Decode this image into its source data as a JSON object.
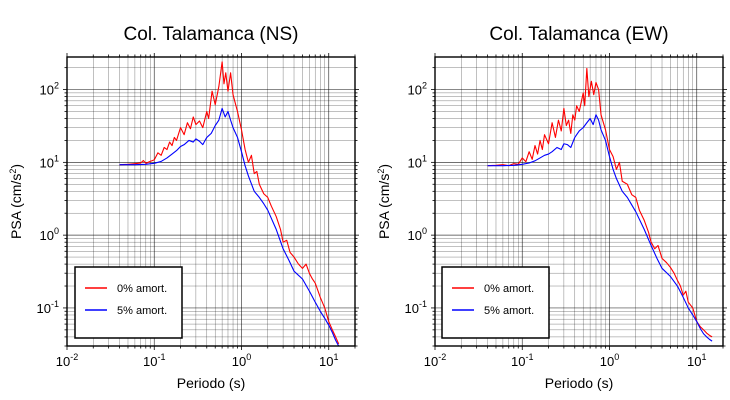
{
  "chart_data": [
    {
      "type": "line",
      "title": "Col. Talamanca (NS)",
      "xlabel": "Periodo (s)",
      "ylabel": "PSA (cm/s²)",
      "xscale": "log",
      "yscale": "log",
      "xlim": [
        0.01,
        20
      ],
      "ylim": [
        0.03,
        280
      ],
      "x_ticks": [
        {
          "base": "10",
          "exp": "-2"
        },
        {
          "base": "10",
          "exp": "-1"
        },
        {
          "base": "10",
          "exp": "0"
        },
        {
          "base": "10",
          "exp": "1"
        }
      ],
      "y_ticks": [
        {
          "base": "10",
          "exp": "-1"
        },
        {
          "base": "10",
          "exp": "0"
        },
        {
          "base": "10",
          "exp": "1"
        },
        {
          "base": "10",
          "exp": "2"
        }
      ],
      "grid": true,
      "legend_position": "bottom-left",
      "series": [
        {
          "name": "0% amort.",
          "color": "#ff0000",
          "points": [
            [
              0.04,
              9.3
            ],
            [
              0.05,
              9.4
            ],
            [
              0.06,
              9.6
            ],
            [
              0.07,
              9.8
            ],
            [
              0.075,
              10.6
            ],
            [
              0.08,
              9.7
            ],
            [
              0.09,
              10.3
            ],
            [
              0.1,
              10.8
            ],
            [
              0.11,
              13.5
            ],
            [
              0.12,
              12.5
            ],
            [
              0.13,
              16
            ],
            [
              0.14,
              15
            ],
            [
              0.15,
              19
            ],
            [
              0.16,
              17
            ],
            [
              0.17,
              22
            ],
            [
              0.18,
              20
            ],
            [
              0.2,
              30
            ],
            [
              0.22,
              24
            ],
            [
              0.24,
              35
            ],
            [
              0.26,
              29
            ],
            [
              0.28,
              42
            ],
            [
              0.3,
              33
            ],
            [
              0.33,
              37
            ],
            [
              0.36,
              30
            ],
            [
              0.4,
              50
            ],
            [
              0.42,
              40
            ],
            [
              0.46,
              95
            ],
            [
              0.5,
              62
            ],
            [
              0.55,
              110
            ],
            [
              0.6,
              240
            ],
            [
              0.63,
              120
            ],
            [
              0.66,
              170
            ],
            [
              0.7,
              95
            ],
            [
              0.75,
              170
            ],
            [
              0.8,
              85
            ],
            [
              0.9,
              50
            ],
            [
              1.0,
              28
            ],
            [
              1.1,
              15
            ],
            [
              1.2,
              10
            ],
            [
              1.3,
              12.5
            ],
            [
              1.4,
              7
            ],
            [
              1.5,
              7.5
            ],
            [
              1.6,
              5
            ],
            [
              1.8,
              3.7
            ],
            [
              2.0,
              3.3
            ],
            [
              2.2,
              2.5
            ],
            [
              2.5,
              1.8
            ],
            [
              2.8,
              1.2
            ],
            [
              3.0,
              0.8
            ],
            [
              3.3,
              0.85
            ],
            [
              3.6,
              0.58
            ],
            [
              4.0,
              0.5
            ],
            [
              4.5,
              0.4
            ],
            [
              5.0,
              0.35
            ],
            [
              5.5,
              0.4
            ],
            [
              6.0,
              0.3
            ],
            [
              6.5,
              0.25
            ],
            [
              7.0,
              0.22
            ],
            [
              8.0,
              0.14
            ],
            [
              9.0,
              0.1
            ],
            [
              10.0,
              0.065
            ],
            [
              11.0,
              0.05
            ],
            [
              12.0,
              0.04
            ],
            [
              13.0,
              0.032
            ]
          ]
        },
        {
          "name": "5% amort.",
          "color": "#0000ff",
          "points": [
            [
              0.04,
              9.3
            ],
            [
              0.06,
              9.3
            ],
            [
              0.08,
              9.4
            ],
            [
              0.1,
              9.7
            ],
            [
              0.12,
              10.3
            ],
            [
              0.14,
              11.5
            ],
            [
              0.16,
              13
            ],
            [
              0.18,
              14.5
            ],
            [
              0.2,
              16.5
            ],
            [
              0.22,
              17.5
            ],
            [
              0.25,
              20
            ],
            [
              0.28,
              19
            ],
            [
              0.3,
              21
            ],
            [
              0.33,
              19.5
            ],
            [
              0.36,
              17.5
            ],
            [
              0.4,
              22
            ],
            [
              0.45,
              25
            ],
            [
              0.5,
              32
            ],
            [
              0.55,
              38
            ],
            [
              0.6,
              55
            ],
            [
              0.65,
              42
            ],
            [
              0.7,
              50
            ],
            [
              0.75,
              38
            ],
            [
              0.8,
              30
            ],
            [
              0.9,
              22
            ],
            [
              1.0,
              14
            ],
            [
              1.1,
              9
            ],
            [
              1.2,
              6.5
            ],
            [
              1.4,
              4
            ],
            [
              1.6,
              3.3
            ],
            [
              1.8,
              2.7
            ],
            [
              2.0,
              2.2
            ],
            [
              2.5,
              1.2
            ],
            [
              3.0,
              0.65
            ],
            [
              3.5,
              0.45
            ],
            [
              4.0,
              0.32
            ],
            [
              5.0,
              0.25
            ],
            [
              6.0,
              0.17
            ],
            [
              7.0,
              0.12
            ],
            [
              8.0,
              0.09
            ],
            [
              9.0,
              0.072
            ],
            [
              10.0,
              0.058
            ],
            [
              11.0,
              0.046
            ],
            [
              12.0,
              0.036
            ],
            [
              13.0,
              0.03
            ]
          ]
        }
      ]
    },
    {
      "type": "line",
      "title": "Col. Talamanca (EW)",
      "xlabel": "Periodo (s)",
      "ylabel": "PSA (cm/s²)",
      "xscale": "log",
      "yscale": "log",
      "xlim": [
        0.01,
        20
      ],
      "ylim": [
        0.03,
        280
      ],
      "x_ticks": [
        {
          "base": "10",
          "exp": "-2"
        },
        {
          "base": "10",
          "exp": "-1"
        },
        {
          "base": "10",
          "exp": "0"
        },
        {
          "base": "10",
          "exp": "1"
        }
      ],
      "y_ticks": [
        {
          "base": "10",
          "exp": "-1"
        },
        {
          "base": "10",
          "exp": "0"
        },
        {
          "base": "10",
          "exp": "1"
        },
        {
          "base": "10",
          "exp": "2"
        }
      ],
      "grid": true,
      "legend_position": "bottom-left",
      "series": [
        {
          "name": "0% amort.",
          "color": "#ff0000",
          "points": [
            [
              0.04,
              9.0
            ],
            [
              0.05,
              9.1
            ],
            [
              0.06,
              9.3
            ],
            [
              0.07,
              9.0
            ],
            [
              0.08,
              9.6
            ],
            [
              0.09,
              9.4
            ],
            [
              0.1,
              11.5
            ],
            [
              0.11,
              10.2
            ],
            [
              0.12,
              14
            ],
            [
              0.13,
              11
            ],
            [
              0.14,
              17
            ],
            [
              0.15,
              13
            ],
            [
              0.16,
              20
            ],
            [
              0.17,
              15
            ],
            [
              0.18,
              24
            ],
            [
              0.2,
              18
            ],
            [
              0.22,
              35
            ],
            [
              0.24,
              22
            ],
            [
              0.26,
              38
            ],
            [
              0.28,
              27
            ],
            [
              0.3,
              55
            ],
            [
              0.32,
              32
            ],
            [
              0.34,
              38
            ],
            [
              0.36,
              25
            ],
            [
              0.38,
              45
            ],
            [
              0.4,
              38
            ],
            [
              0.42,
              60
            ],
            [
              0.45,
              50
            ],
            [
              0.5,
              90
            ],
            [
              0.52,
              60
            ],
            [
              0.55,
              195
            ],
            [
              0.58,
              80
            ],
            [
              0.62,
              130
            ],
            [
              0.66,
              85
            ],
            [
              0.7,
              125
            ],
            [
              0.75,
              100
            ],
            [
              0.8,
              45
            ],
            [
              0.9,
              28
            ],
            [
              1.0,
              15
            ],
            [
              1.1,
              12
            ],
            [
              1.2,
              8
            ],
            [
              1.3,
              10
            ],
            [
              1.4,
              5.5
            ],
            [
              1.6,
              5
            ],
            [
              1.8,
              3.6
            ],
            [
              2.0,
              3.3
            ],
            [
              2.2,
              2.2
            ],
            [
              2.5,
              1.6
            ],
            [
              2.8,
              1.1
            ],
            [
              3.0,
              0.8
            ],
            [
              3.3,
              0.65
            ],
            [
              3.6,
              0.72
            ],
            [
              4.0,
              0.48
            ],
            [
              4.5,
              0.42
            ],
            [
              5.0,
              0.36
            ],
            [
              5.5,
              0.3
            ],
            [
              6.0,
              0.24
            ],
            [
              6.5,
              0.2
            ],
            [
              7.0,
              0.15
            ],
            [
              7.5,
              0.17
            ],
            [
              8.0,
              0.12
            ],
            [
              9.0,
              0.1
            ],
            [
              10.0,
              0.065
            ],
            [
              11.0,
              0.055
            ],
            [
              12.0,
              0.05
            ],
            [
              13.0,
              0.045
            ],
            [
              14.0,
              0.042
            ],
            [
              15.0,
              0.04
            ]
          ]
        },
        {
          "name": "5% amort.",
          "color": "#0000ff",
          "points": [
            [
              0.04,
              9.0
            ],
            [
              0.06,
              9.0
            ],
            [
              0.08,
              9.1
            ],
            [
              0.1,
              9.4
            ],
            [
              0.12,
              9.8
            ],
            [
              0.14,
              10.5
            ],
            [
              0.16,
              11.5
            ],
            [
              0.18,
              12.5
            ],
            [
              0.2,
              13
            ],
            [
              0.22,
              14
            ],
            [
              0.25,
              16
            ],
            [
              0.28,
              15
            ],
            [
              0.3,
              18
            ],
            [
              0.33,
              17.5
            ],
            [
              0.36,
              16
            ],
            [
              0.4,
              22
            ],
            [
              0.45,
              27
            ],
            [
              0.5,
              30
            ],
            [
              0.55,
              35
            ],
            [
              0.6,
              40
            ],
            [
              0.65,
              33
            ],
            [
              0.7,
              45
            ],
            [
              0.75,
              38
            ],
            [
              0.8,
              28
            ],
            [
              0.9,
              20
            ],
            [
              1.0,
              12
            ],
            [
              1.1,
              8
            ],
            [
              1.2,
              6
            ],
            [
              1.4,
              4
            ],
            [
              1.6,
              3.3
            ],
            [
              1.8,
              2.6
            ],
            [
              2.0,
              2.1
            ],
            [
              2.5,
              1.2
            ],
            [
              3.0,
              0.72
            ],
            [
              3.5,
              0.48
            ],
            [
              4.0,
              0.35
            ],
            [
              5.0,
              0.27
            ],
            [
              6.0,
              0.2
            ],
            [
              7.0,
              0.14
            ],
            [
              8.0,
              0.1
            ],
            [
              9.0,
              0.08
            ],
            [
              10.0,
              0.065
            ],
            [
              11.0,
              0.052
            ],
            [
              12.0,
              0.044
            ],
            [
              13.0,
              0.04
            ],
            [
              14.0,
              0.037
            ],
            [
              15.0,
              0.035
            ]
          ]
        }
      ]
    }
  ]
}
